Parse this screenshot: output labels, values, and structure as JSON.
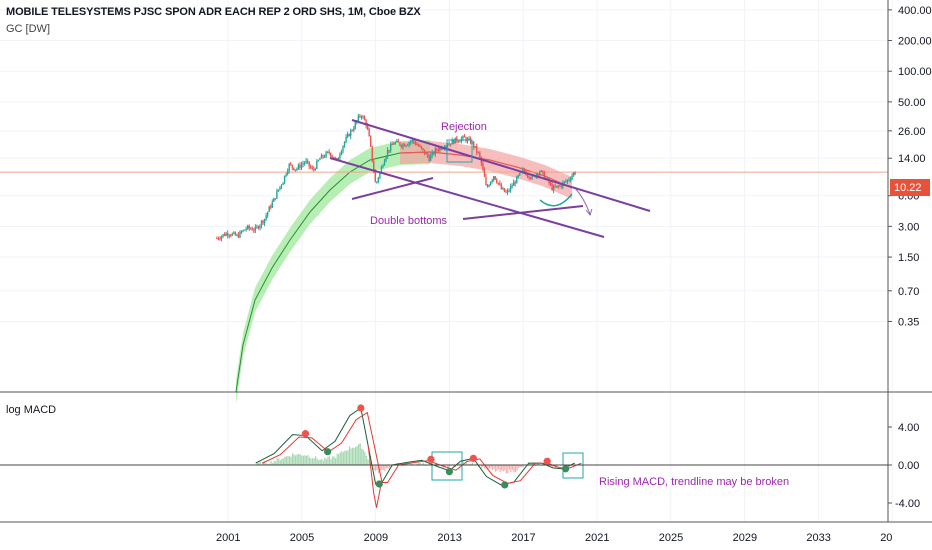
{
  "header": {
    "title": "MOBILE TELESYSTEMS PJSC SPON ADR EACH REP 2 ORD SHS, 1M, Cboe BZX",
    "indicator": "GC [DW]"
  },
  "price_badge": "10.22",
  "colors": {
    "up": "#26a69a",
    "down": "#ef5350",
    "trendline": "#7b3fa0",
    "annotation": "#9c27b0",
    "band_green": "#9ee89a",
    "band_red": "#f4a3a3",
    "price_line": "#f0a58a",
    "box": "#26a6a6"
  },
  "chart_data": [
    {
      "type": "candlestick",
      "panel": "price",
      "y_scale": "log",
      "y_ticks": [
        "400.00",
        "200.00",
        "100.00",
        "50.00",
        "26.00",
        "14.00",
        "6.00",
        "3.00",
        "1.50",
        "0.70",
        "0.35"
      ],
      "x_ticks": [
        "2001",
        "2005",
        "2009",
        "2013",
        "2017",
        "2021",
        "2025",
        "2029",
        "2033",
        "20"
      ],
      "last_price": 10.22,
      "price_path": [
        {
          "x": 2000.4,
          "y": 2.3
        },
        {
          "x": 2001.0,
          "y": 2.6
        },
        {
          "x": 2001.5,
          "y": 2.4
        },
        {
          "x": 2002.0,
          "y": 2.9
        },
        {
          "x": 2002.5,
          "y": 2.8
        },
        {
          "x": 2003.0,
          "y": 3.6
        },
        {
          "x": 2003.5,
          "y": 5.5
        },
        {
          "x": 2004.0,
          "y": 8.5
        },
        {
          "x": 2004.3,
          "y": 12
        },
        {
          "x": 2004.7,
          "y": 11
        },
        {
          "x": 2005.2,
          "y": 13
        },
        {
          "x": 2005.6,
          "y": 10.5
        },
        {
          "x": 2006.0,
          "y": 14
        },
        {
          "x": 2006.5,
          "y": 16
        },
        {
          "x": 2006.9,
          "y": 13
        },
        {
          "x": 2007.3,
          "y": 20
        },
        {
          "x": 2007.8,
          "y": 28
        },
        {
          "x": 2008.2,
          "y": 38
        },
        {
          "x": 2008.5,
          "y": 30
        },
        {
          "x": 2008.8,
          "y": 14
        },
        {
          "x": 2009.0,
          "y": 7.5
        },
        {
          "x": 2009.3,
          "y": 11
        },
        {
          "x": 2009.6,
          "y": 16
        },
        {
          "x": 2010.0,
          "y": 20
        },
        {
          "x": 2010.5,
          "y": 19
        },
        {
          "x": 2011.0,
          "y": 21
        },
        {
          "x": 2011.5,
          "y": 17
        },
        {
          "x": 2011.9,
          "y": 14
        },
        {
          "x": 2012.3,
          "y": 17
        },
        {
          "x": 2012.8,
          "y": 19
        },
        {
          "x": 2013.3,
          "y": 21
        },
        {
          "x": 2013.8,
          "y": 22
        },
        {
          "x": 2014.2,
          "y": 20
        },
        {
          "x": 2014.6,
          "y": 15
        },
        {
          "x": 2015.0,
          "y": 7
        },
        {
          "x": 2015.4,
          "y": 9.5
        },
        {
          "x": 2015.8,
          "y": 7
        },
        {
          "x": 2016.1,
          "y": 6.3
        },
        {
          "x": 2016.5,
          "y": 8
        },
        {
          "x": 2017.0,
          "y": 10.5
        },
        {
          "x": 2017.5,
          "y": 9
        },
        {
          "x": 2017.9,
          "y": 10.5
        },
        {
          "x": 2018.3,
          "y": 8.5
        },
        {
          "x": 2018.6,
          "y": 7
        },
        {
          "x": 2019.0,
          "y": 7.5
        },
        {
          "x": 2019.4,
          "y": 8.5
        },
        {
          "x": 2019.8,
          "y": 10.22
        }
      ],
      "annotations": [
        "Rejection",
        "Double bottoms"
      ]
    },
    {
      "type": "line",
      "panel": "macd",
      "title": "log MACD",
      "y_ticks": [
        "4.00",
        "0.00",
        "-4.00"
      ],
      "macd_path": [
        {
          "x": 2002.5,
          "y": 0.2
        },
        {
          "x": 2003.5,
          "y": 1.2
        },
        {
          "x": 2004.5,
          "y": 3.2
        },
        {
          "x": 2005.2,
          "y": 3.1
        },
        {
          "x": 2006.1,
          "y": 1.5
        },
        {
          "x": 2006.8,
          "y": 2.5
        },
        {
          "x": 2007.6,
          "y": 5.2
        },
        {
          "x": 2008.2,
          "y": 6.0
        },
        {
          "x": 2008.6,
          "y": 2.0
        },
        {
          "x": 2009.0,
          "y": -2.0
        },
        {
          "x": 2009.3,
          "y": -2.0
        },
        {
          "x": 2009.9,
          "y": 0.0
        },
        {
          "x": 2010.8,
          "y": 0.3
        },
        {
          "x": 2011.5,
          "y": 0.5
        },
        {
          "x": 2012.4,
          "y": -0.2
        },
        {
          "x": 2013.0,
          "y": -0.6
        },
        {
          "x": 2013.6,
          "y": 0.4
        },
        {
          "x": 2014.3,
          "y": 0.7
        },
        {
          "x": 2015.0,
          "y": -1.2
        },
        {
          "x": 2015.8,
          "y": -2.1
        },
        {
          "x": 2016.5,
          "y": -1.8
        },
        {
          "x": 2017.3,
          "y": 0.2
        },
        {
          "x": 2018.0,
          "y": 0.2
        },
        {
          "x": 2018.6,
          "y": -0.3
        },
        {
          "x": 2019.1,
          "y": -0.4
        },
        {
          "x": 2019.8,
          "y": 0.2
        }
      ],
      "annotations": [
        "Rising MACD, trendline may be broken"
      ]
    }
  ]
}
